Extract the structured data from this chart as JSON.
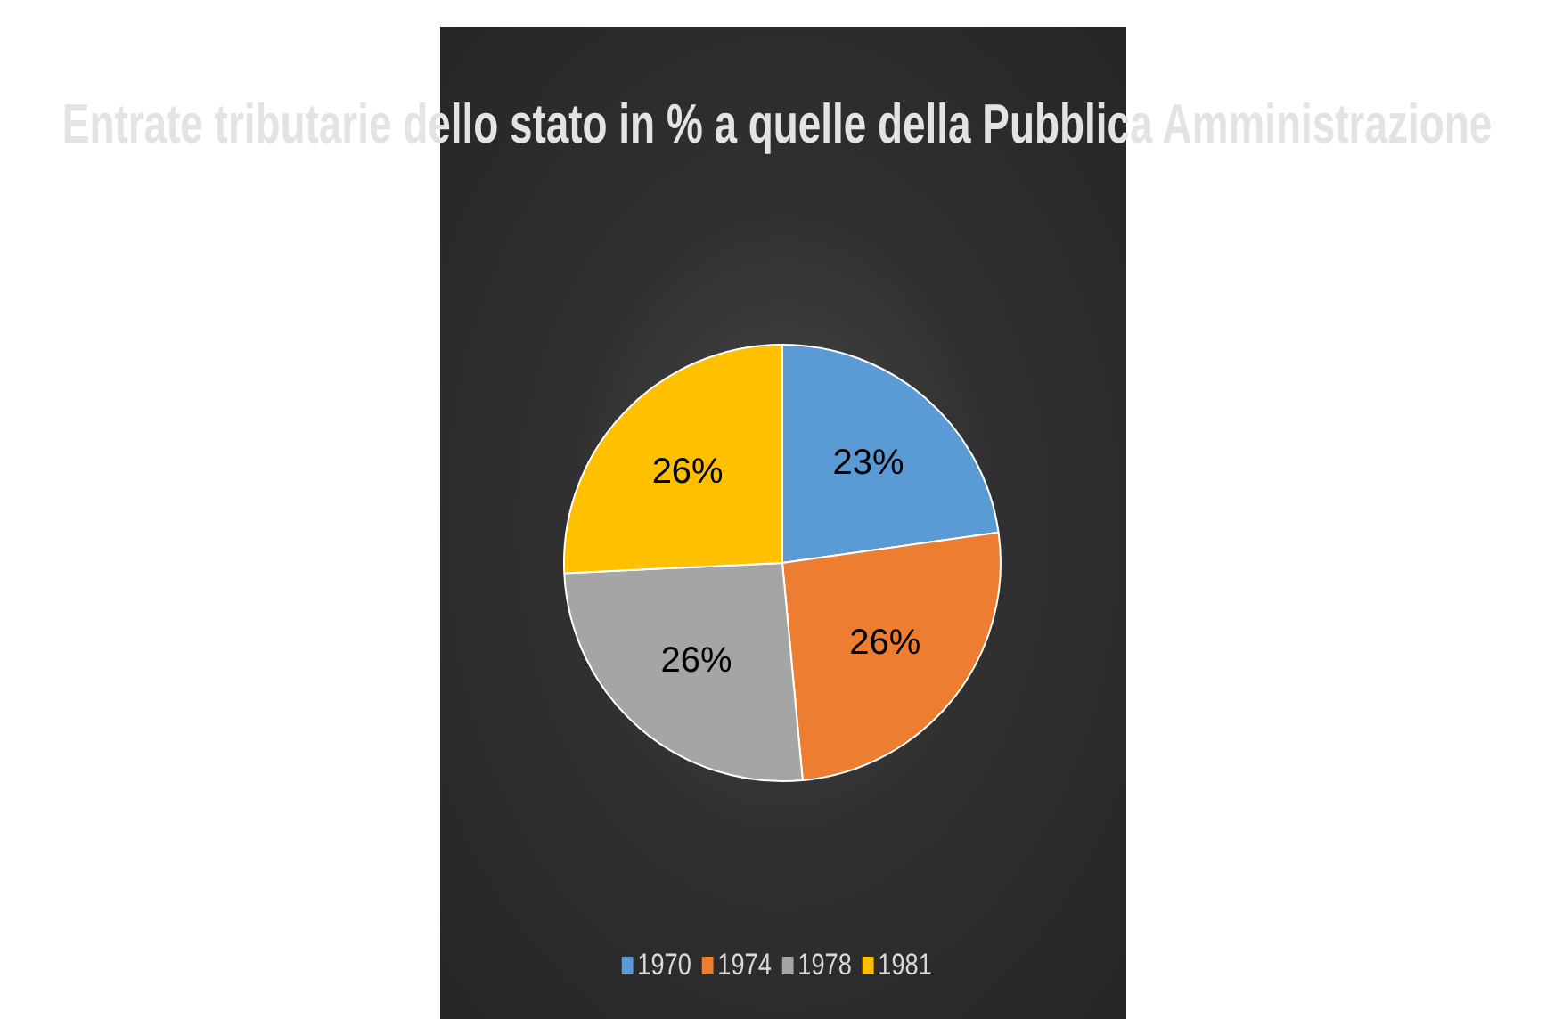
{
  "chart_data": {
    "type": "pie",
    "title": "Entrate tributarie dello stato in % a quelle della Pubblica Amministrazione",
    "categories": [
      "1970",
      "1974",
      "1978",
      "1981"
    ],
    "values": [
      23,
      26,
      26,
      26
    ],
    "value_labels": [
      "23%",
      "26%",
      "26%",
      "26%"
    ],
    "colors": [
      "#5b9bd5",
      "#ed7d31",
      "#a5a5a5",
      "#ffc000"
    ],
    "legend": "bottom"
  }
}
